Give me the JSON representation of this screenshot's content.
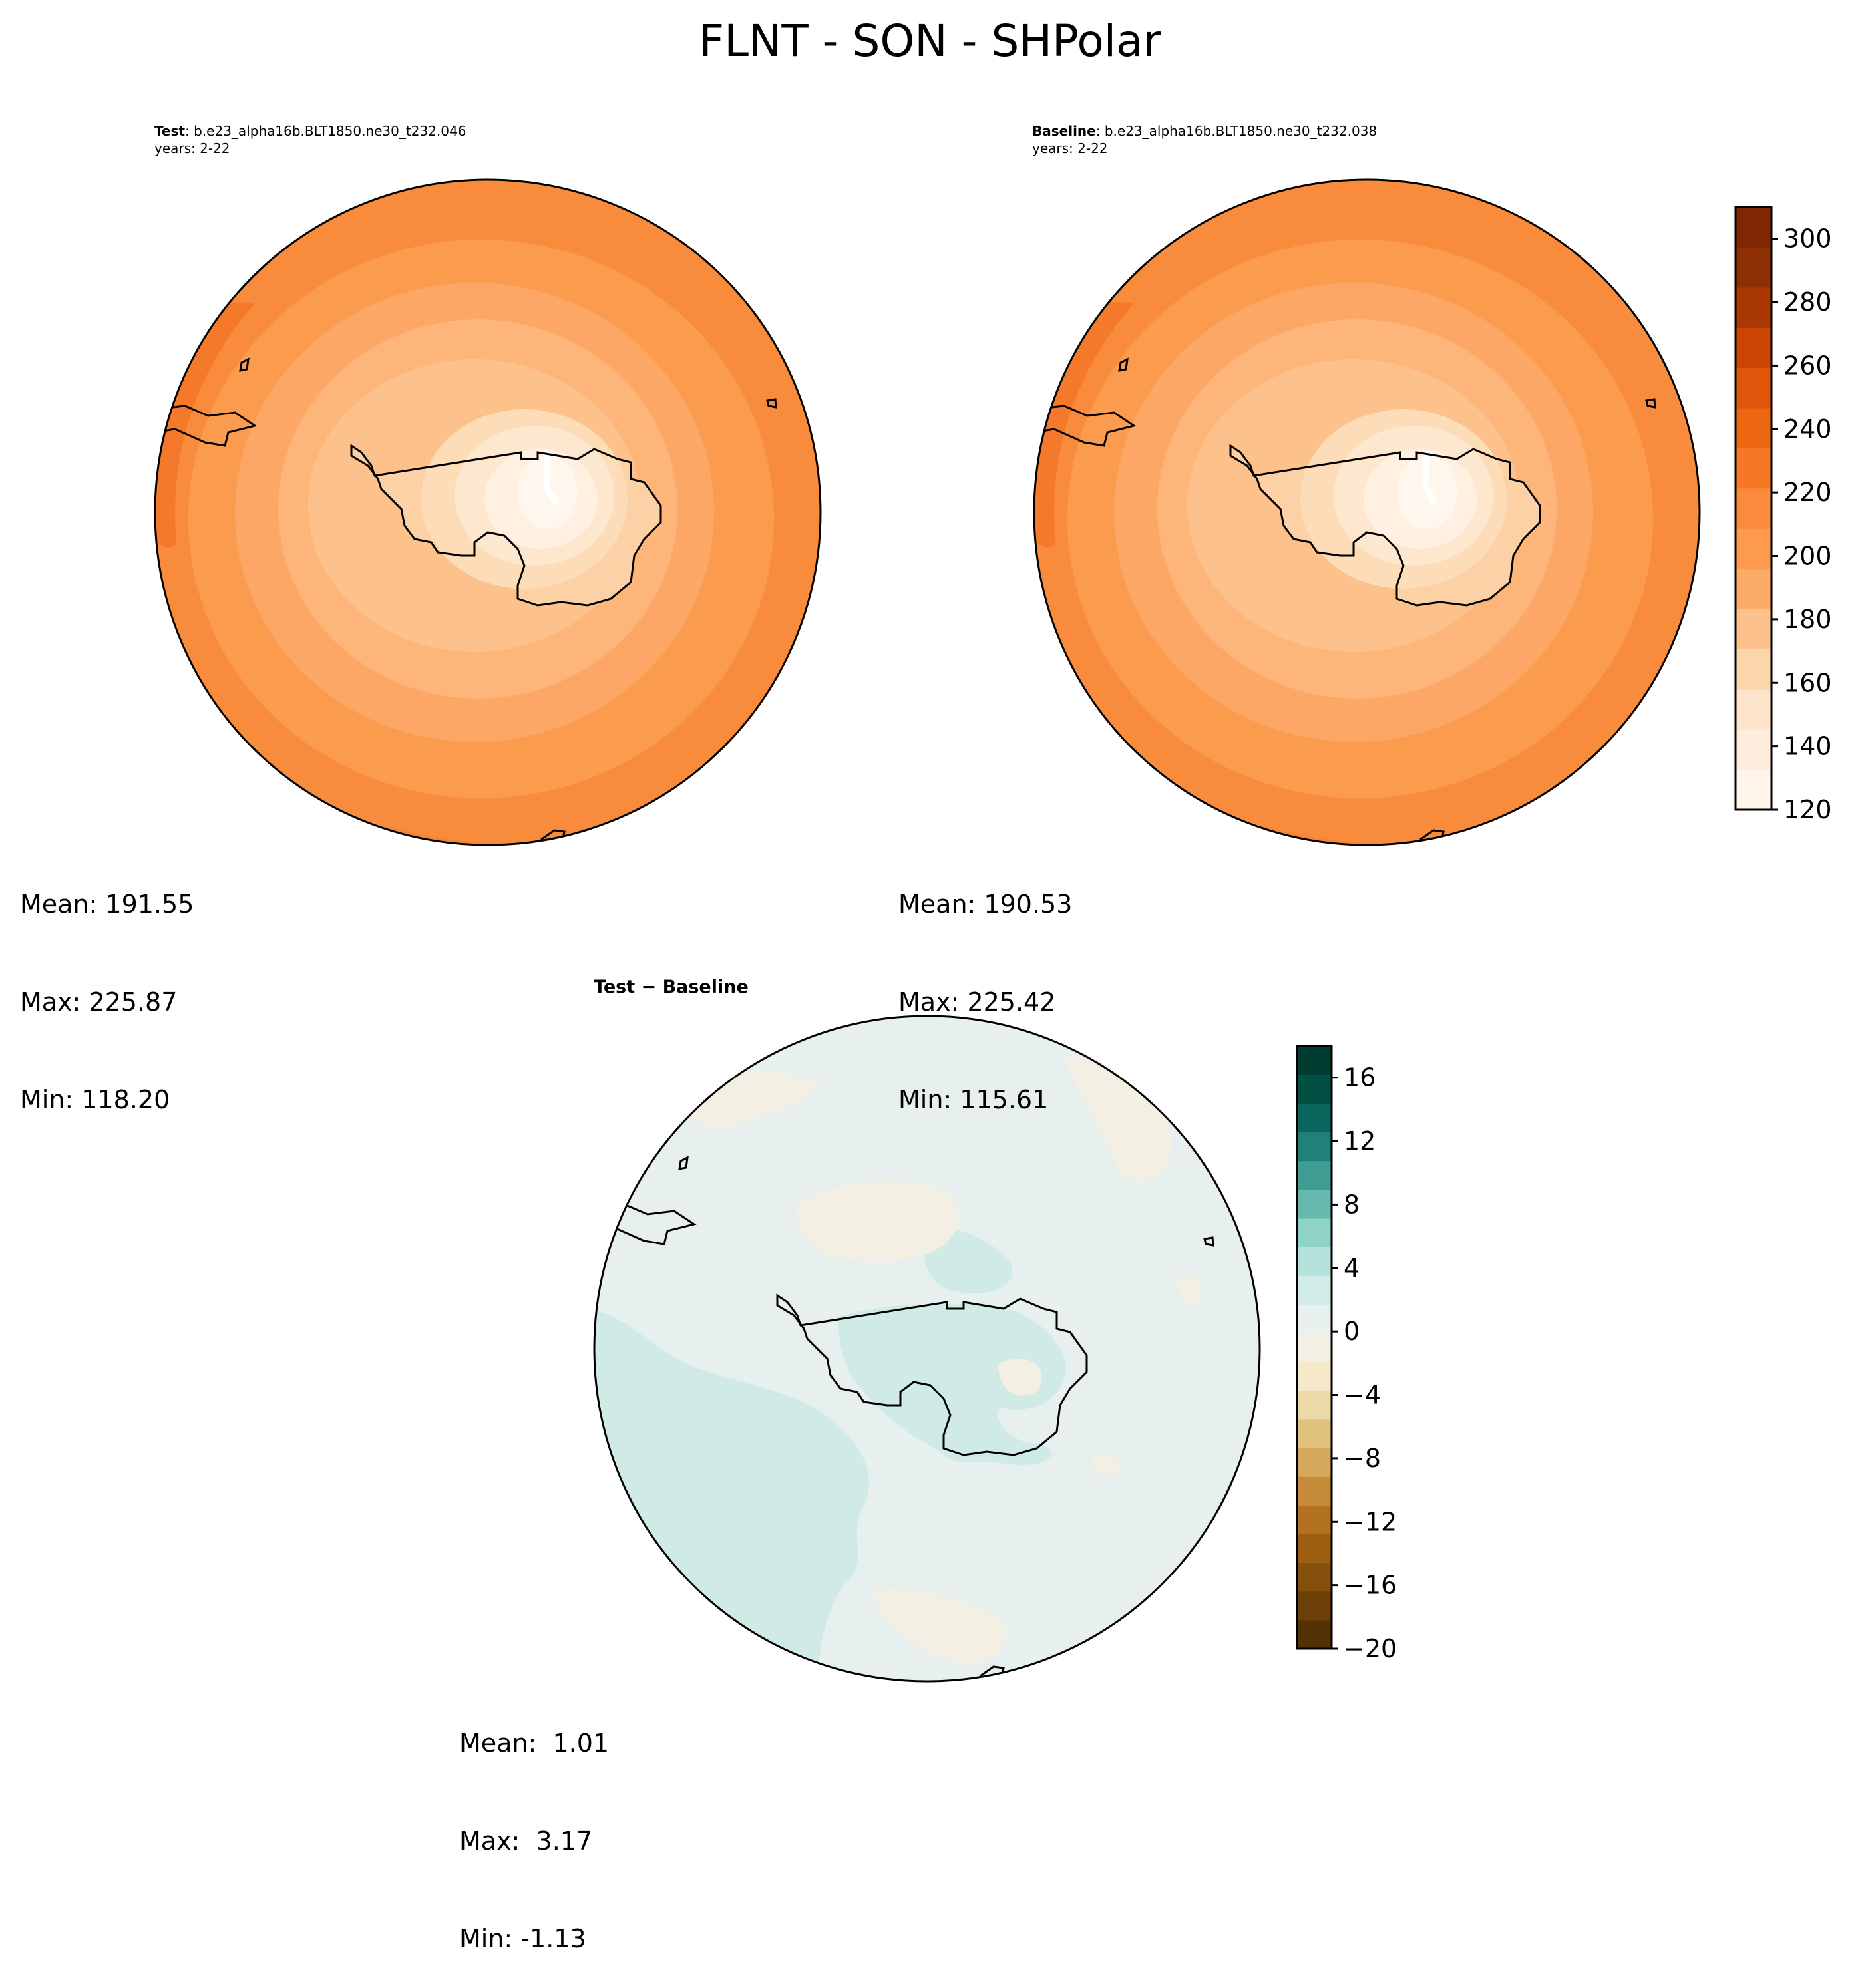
{
  "title": "FLNT - SON - SHPolar",
  "panels": {
    "test": {
      "label": "Test",
      "case": "b.e23_alpha16b.BLT1850.ne30_t232.046",
      "years": "years: 2-22",
      "stats": {
        "mean": "Mean: 191.55",
        "max": "Max: 225.87",
        "min": "Min: 118.20"
      }
    },
    "baseline": {
      "label": "Baseline",
      "case": "b.e23_alpha16b.BLT1850.ne30_t232.038",
      "years": "years: 2-22",
      "stats": {
        "mean": "Mean: 190.53",
        "max": "Max: 225.42",
        "min": "Min: 115.61"
      }
    },
    "diff": {
      "label_a": "Test",
      "label_sep": " − ",
      "label_b": "Baseline",
      "stats": {
        "mean": "Mean:  1.01",
        "max": "Max:  3.17",
        "min": "Min: -1.13"
      }
    }
  },
  "colorbars": {
    "main": {
      "range": [
        120,
        310
      ],
      "ticks": [
        "120",
        "140",
        "160",
        "180",
        "200",
        "220",
        "240",
        "260",
        "280",
        "300"
      ],
      "colors": [
        "#fff5eb",
        "#feeddc",
        "#fee4ca",
        "#fdd5ab",
        "#fdc28b",
        "#fdac67",
        "#fd9a4e",
        "#fb8b3c",
        "#f67824",
        "#ed6610",
        "#df560a",
        "#cb4602",
        "#aa3803",
        "#8f2f04",
        "#7f2704"
      ]
    },
    "diff": {
      "range": [
        -20,
        18
      ],
      "ticks": [
        "−20",
        "−16",
        "−12",
        "−8",
        "−4",
        "0",
        "4",
        "8",
        "12",
        "16"
      ],
      "colors": [
        "#543005",
        "#6d3f08",
        "#84500b",
        "#9c5f12",
        "#b3721f",
        "#c58b3b",
        "#d5a95b",
        "#e1c27d",
        "#ecd9a8",
        "#f5e9ca",
        "#f3efe2",
        "#e8f1ef",
        "#d2ece8",
        "#b4e1db",
        "#8fd2c6",
        "#67b9ae",
        "#3f9d93",
        "#1f8178",
        "#0b675d",
        "#024f43",
        "#003c30"
      ]
    }
  }
}
